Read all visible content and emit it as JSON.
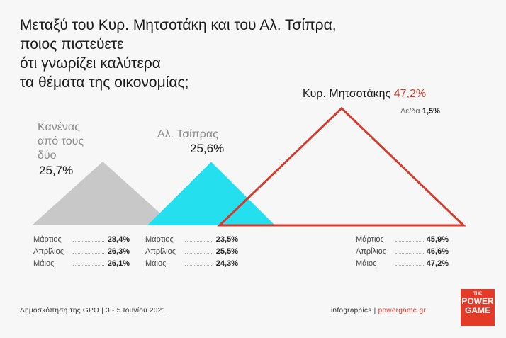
{
  "title_lines": [
    "Μεταξύ του Κυρ. Μητσοτάκη και του Αλ. Τσίπρα,",
    "ποιος πιστεύετε",
    "ότι γνωρίζει καλύτερα",
    "τα θέματα της οικονομίας;"
  ],
  "colors": {
    "grey": "#c8c8c8",
    "cyan": "#24e0ee",
    "red": "#d63a2c"
  },
  "neither": {
    "label_lines": [
      "Κανένας",
      "από τους",
      "δύο"
    ],
    "value": "25,7%"
  },
  "tsipras": {
    "label": "Αλ. Τσίπρας",
    "value": "25,6%"
  },
  "mitsotakis": {
    "label": "Κυρ. Μητσοτάκης",
    "value": "47,2%",
    "dkna_label": "Δε/δα",
    "dkna_value": "1,5%"
  },
  "tables": {
    "neither": [
      {
        "m": "Μάρτιος",
        "v": "28,4%"
      },
      {
        "m": "Απρίλιος",
        "v": "26,3%"
      },
      {
        "m": "Μάιος",
        "v": "26,1%"
      }
    ],
    "tsipras": [
      {
        "m": "Μάρτιος",
        "v": "23,5%"
      },
      {
        "m": "Απρίλιος",
        "v": "25,5%"
      },
      {
        "m": "Μάιος",
        "v": "24,3%"
      }
    ],
    "mitsotakis": [
      {
        "m": "Μάρτιος",
        "v": "45,9%"
      },
      {
        "m": "Απρίλιος",
        "v": "46,6%"
      },
      {
        "m": "Μάιος",
        "v": "47,2%"
      }
    ]
  },
  "footer": {
    "left": "Δημοσκόπηση της GPO | 3 - 5 Ιουνίου 2021",
    "right_prefix": "infographics | ",
    "right_site": "powergame.gr"
  },
  "logo": {
    "the": "THE",
    "line1": "POWER",
    "line2": "GAME"
  },
  "chart_data": {
    "type": "bar",
    "categories": [
      "Κανένας από τους δύο",
      "Αλ. Τσίπρας",
      "Κυρ. Μητσοτάκης"
    ],
    "values": [
      25.7,
      25.6,
      47.2
    ],
    "extra": {
      "Δε/δα": 1.5
    },
    "trend": {
      "months": [
        "Μάρτιος",
        "Απρίλιος",
        "Μάιος"
      ],
      "series": [
        {
          "name": "Κανένας από τους δύο",
          "values": [
            28.4,
            26.3,
            26.1
          ]
        },
        {
          "name": "Αλ. Τσίπρας",
          "values": [
            23.5,
            25.5,
            24.3
          ]
        },
        {
          "name": "Κυρ. Μητσοτάκης",
          "values": [
            45.9,
            46.6,
            47.2
          ]
        }
      ]
    },
    "title": "Μεταξύ του Κυρ. Μητσοτάκη και του Αλ. Τσίπρα, ποιος πιστεύετε ότι γνωρίζει καλύτερα τα θέματα της οικονομίας;"
  }
}
